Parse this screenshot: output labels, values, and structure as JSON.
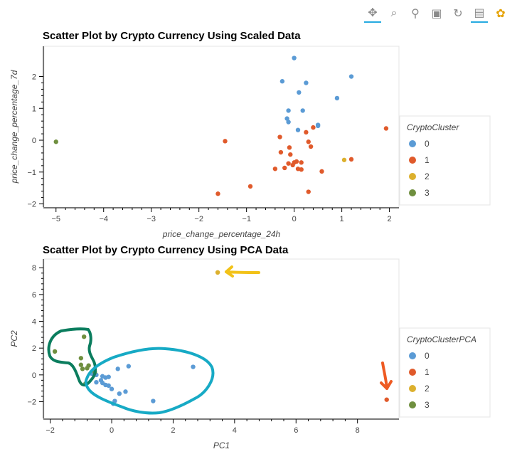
{
  "toolbar": {
    "tools": [
      {
        "name": "pan-tool-icon",
        "glyph": "✥",
        "active": true
      },
      {
        "name": "box-zoom-tool-icon",
        "glyph": "⌕",
        "active": false
      },
      {
        "name": "wheel-zoom-tool-icon",
        "glyph": "⚲",
        "active": false
      },
      {
        "name": "save-tool-icon",
        "glyph": "▣",
        "active": false
      },
      {
        "name": "reset-tool-icon",
        "glyph": "↻",
        "active": false
      },
      {
        "name": "hover-tool-icon",
        "glyph": "▤",
        "active": true
      },
      {
        "name": "bokeh-logo-icon",
        "glyph": "✿",
        "active": false
      }
    ]
  },
  "colors": {
    "0": "#5b9bd5",
    "1": "#e05a2b",
    "2": "#dcb02e",
    "3": "#6f8f3f"
  },
  "chart_data": [
    {
      "type": "scatter",
      "title": "Scatter Plot by Crypto Currency Using Scaled Data",
      "xlabel": "price_change_percentage_24h",
      "ylabel": "price_change_percentage_7d",
      "xlim": [
        -5.25,
        2.2
      ],
      "ylim": [
        -2.1,
        2.95
      ],
      "xticks": [
        -5,
        -4,
        -3,
        -2,
        -1,
        0,
        1,
        2
      ],
      "yticks": [
        -2,
        -1,
        0,
        1,
        2
      ],
      "legend_title": "CryptoCluster",
      "legend_position": "right",
      "series": [
        {
          "name": "0",
          "points": [
            [
              0.0,
              2.58
            ],
            [
              1.2,
              2.0
            ],
            [
              -0.25,
              1.85
            ],
            [
              0.25,
              1.8
            ],
            [
              0.1,
              1.5
            ],
            [
              0.9,
              1.32
            ],
            [
              -0.12,
              0.93
            ],
            [
              0.18,
              0.93
            ],
            [
              -0.15,
              0.68
            ],
            [
              -0.12,
              0.57
            ],
            [
              0.08,
              0.32
            ],
            [
              0.5,
              0.48
            ],
            [
              0.5,
              0.45
            ]
          ]
        },
        {
          "name": "1",
          "points": [
            [
              1.93,
              0.37
            ],
            [
              0.4,
              0.4
            ],
            [
              0.25,
              0.25
            ],
            [
              -0.3,
              0.1
            ],
            [
              0.3,
              -0.05
            ],
            [
              -1.45,
              -0.03
            ],
            [
              0.35,
              -0.2
            ],
            [
              -0.1,
              -0.23
            ],
            [
              -0.28,
              -0.38
            ],
            [
              -0.08,
              -0.45
            ],
            [
              1.2,
              -0.6
            ],
            [
              0.0,
              -0.7
            ],
            [
              0.05,
              -0.67
            ],
            [
              0.15,
              -0.7
            ],
            [
              -0.12,
              -0.73
            ],
            [
              -0.03,
              -0.78
            ],
            [
              -0.2,
              -0.87
            ],
            [
              -0.4,
              -0.9
            ],
            [
              0.08,
              -0.9
            ],
            [
              0.15,
              -0.92
            ],
            [
              0.58,
              -0.98
            ],
            [
              -0.92,
              -1.45
            ],
            [
              0.3,
              -1.62
            ],
            [
              -1.6,
              -1.68
            ]
          ]
        },
        {
          "name": "2",
          "points": [
            [
              1.05,
              -0.62
            ]
          ]
        },
        {
          "name": "3",
          "points": [
            [
              -5.0,
              -0.05
            ]
          ]
        }
      ]
    },
    {
      "type": "scatter",
      "title": "Scatter Plot by Crypto Currency Using PCA Data",
      "xlabel": "PC1",
      "ylabel": "PC2",
      "xlim": [
        -2.2,
        9.35
      ],
      "ylim": [
        -3.25,
        8.65
      ],
      "xticks": [
        -2,
        0,
        2,
        4,
        6,
        8
      ],
      "yticks": [
        -2,
        0,
        2,
        4,
        6,
        8
      ],
      "legend_title": "CryptoClusterPCA",
      "legend_position": "right",
      "series": [
        {
          "name": "0",
          "points": [
            [
              0.2,
              0.45
            ],
            [
              0.55,
              0.65
            ],
            [
              2.65,
              0.6
            ],
            [
              -0.65,
              0.1
            ],
            [
              -0.5,
              0.0
            ],
            [
              -0.3,
              -0.1
            ],
            [
              -0.2,
              -0.2
            ],
            [
              -0.1,
              -0.15
            ],
            [
              -0.35,
              -0.4
            ],
            [
              -0.5,
              -0.55
            ],
            [
              -0.3,
              -0.6
            ],
            [
              -0.1,
              -0.8
            ],
            [
              0.0,
              -1.05
            ],
            [
              -0.2,
              -0.75
            ],
            [
              0.25,
              -1.4
            ],
            [
              0.45,
              -1.25
            ],
            [
              1.35,
              -1.95
            ],
            [
              0.1,
              -1.95
            ],
            [
              0.05,
              -2.15
            ]
          ]
        },
        {
          "name": "1",
          "points": [
            [
              8.95,
              -1.85
            ]
          ]
        },
        {
          "name": "2",
          "points": [
            [
              3.45,
              7.65
            ]
          ]
        },
        {
          "name": "3",
          "points": [
            [
              -1.85,
              1.75
            ],
            [
              -0.9,
              2.85
            ],
            [
              -1.0,
              1.25
            ],
            [
              -1.0,
              0.75
            ],
            [
              -0.75,
              0.7
            ],
            [
              -0.95,
              0.45
            ],
            [
              -0.8,
              0.5
            ],
            [
              -0.55,
              0.2
            ],
            [
              -0.85,
              -0.65
            ]
          ]
        }
      ]
    }
  ]
}
